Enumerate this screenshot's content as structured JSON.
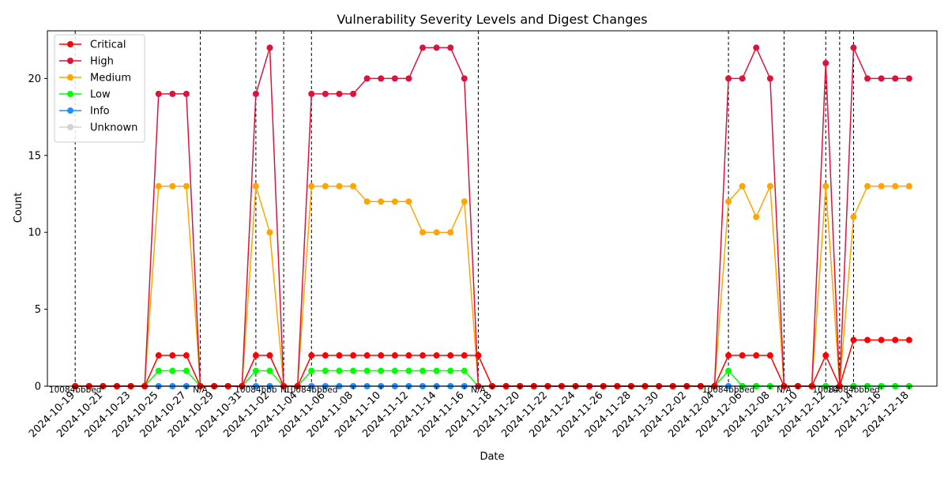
{
  "chart_data": {
    "type": "line",
    "title": "Vulnerability Severity Levels and Digest Changes",
    "xlabel": "Date",
    "ylabel": "Count",
    "ylim": [
      0,
      23.1
    ],
    "yticks": [
      0,
      5,
      10,
      15,
      20
    ],
    "xlim": [
      "2024-10-17",
      "2024-12-20"
    ],
    "xticks": [
      "2024-10-19",
      "2024-10-21",
      "2024-10-23",
      "2024-10-25",
      "2024-10-27",
      "2024-10-29",
      "2024-10-31",
      "2024-11-02",
      "2024-11-04",
      "2024-11-06",
      "2024-11-08",
      "2024-11-10",
      "2024-11-12",
      "2024-11-14",
      "2024-11-16",
      "2024-11-18",
      "2024-11-20",
      "2024-11-22",
      "2024-11-24",
      "2024-11-26",
      "2024-11-28",
      "2024-11-30",
      "2024-12-02",
      "2024-12-04",
      "2024-12-06",
      "2024-12-08",
      "2024-12-10",
      "2024-12-12",
      "2024-12-14",
      "2024-12-16",
      "2024-12-18"
    ],
    "legend_position": "upper-left",
    "start_date": "2024-10-19",
    "series": [
      {
        "name": "Critical",
        "color": "#ff0000",
        "line_color": "#ff0000",
        "values": [
          0,
          0,
          0,
          0,
          0,
          0,
          2,
          2,
          2,
          0,
          0,
          0,
          0,
          2,
          2,
          0,
          0,
          2,
          2,
          2,
          2,
          2,
          2,
          2,
          2,
          2,
          2,
          2,
          2,
          2,
          0,
          0,
          0,
          0,
          0,
          0,
          0,
          0,
          0,
          0,
          0,
          0,
          0,
          0,
          0,
          0,
          0,
          2,
          2,
          2,
          2,
          0,
          0,
          0,
          2,
          0,
          3,
          3,
          3,
          3,
          3
        ]
      },
      {
        "name": "High",
        "color": "#dc143c",
        "line_color": "#dc143c",
        "values": [
          0,
          0,
          0,
          0,
          0,
          0,
          19,
          19,
          19,
          0,
          0,
          0,
          0,
          19,
          22,
          0,
          0,
          19,
          19,
          19,
          19,
          20,
          20,
          20,
          20,
          22,
          22,
          22,
          20,
          0,
          0,
          0,
          0,
          0,
          0,
          0,
          0,
          0,
          0,
          0,
          0,
          0,
          0,
          0,
          0,
          0,
          0,
          20,
          20,
          22,
          20,
          0,
          0,
          0,
          21,
          0,
          22,
          20,
          20,
          20,
          20
        ]
      },
      {
        "name": "Medium",
        "color": "#ffa500",
        "line_color": "#ffa500",
        "values": [
          0,
          0,
          0,
          0,
          0,
          0,
          13,
          13,
          13,
          0,
          0,
          0,
          0,
          13,
          10,
          0,
          0,
          13,
          13,
          13,
          13,
          12,
          12,
          12,
          12,
          10,
          10,
          10,
          12,
          0,
          0,
          0,
          0,
          0,
          0,
          0,
          0,
          0,
          0,
          0,
          0,
          0,
          0,
          0,
          0,
          0,
          0,
          12,
          13,
          11,
          13,
          0,
          0,
          0,
          13,
          0,
          11,
          13,
          13,
          13,
          13
        ]
      },
      {
        "name": "Low",
        "color": "#00ff00",
        "line_color": "#00ff00",
        "values": [
          0,
          0,
          0,
          0,
          0,
          0,
          1,
          1,
          1,
          0,
          0,
          0,
          0,
          1,
          1,
          0,
          0,
          1,
          1,
          1,
          1,
          1,
          1,
          1,
          1,
          1,
          1,
          1,
          1,
          0,
          0,
          0,
          0,
          0,
          0,
          0,
          0,
          0,
          0,
          0,
          0,
          0,
          0,
          0,
          0,
          0,
          0,
          1,
          0,
          0,
          0,
          0,
          0,
          0,
          0,
          0,
          0,
          0,
          0,
          0,
          0
        ]
      },
      {
        "name": "Info",
        "color": "#1e90ff",
        "line_color": "#1e90ff",
        "values": [
          0,
          0,
          0,
          0,
          0,
          0,
          0,
          0,
          0,
          0,
          0,
          0,
          0,
          0,
          0,
          0,
          0,
          0,
          0,
          0,
          0,
          0,
          0,
          0,
          0,
          0,
          0,
          0,
          0,
          0,
          0,
          0,
          0,
          0,
          0,
          0,
          0,
          0,
          0,
          0,
          0,
          0,
          0,
          0,
          0,
          0,
          0,
          0,
          0,
          0,
          0,
          0,
          0,
          0,
          0,
          0,
          0,
          0,
          0,
          0,
          0
        ]
      },
      {
        "name": "Unknown",
        "color": "#d3d3d3",
        "line_color": "#d3d3d3",
        "values": [
          0,
          0,
          0,
          0,
          0,
          0,
          0,
          0,
          0,
          0,
          0,
          0,
          0,
          0,
          0,
          0,
          0,
          0,
          0,
          0,
          0,
          0,
          0,
          0,
          0,
          0,
          0,
          0,
          0,
          0,
          0,
          0,
          0,
          0,
          0,
          0,
          0,
          0,
          0,
          0,
          0,
          0,
          0,
          0,
          0,
          0,
          0,
          0,
          0,
          0,
          0,
          0,
          0,
          0,
          0,
          0,
          0,
          0,
          0,
          0,
          0
        ]
      }
    ],
    "digest_changes": [
      {
        "date": "2024-10-19",
        "label": "10084bbbed"
      },
      {
        "date": "2024-10-28",
        "label": "N/A"
      },
      {
        "date": "2024-11-01",
        "label": "10084bbb"
      },
      {
        "date": "2024-11-03",
        "label": "N"
      },
      {
        "date": "2024-11-05",
        "label": "10084bbbed"
      },
      {
        "date": "2024-11-17",
        "label": "N/A"
      },
      {
        "date": "2024-12-05",
        "label": "10084bbbed"
      },
      {
        "date": "2024-12-09",
        "label": "N/A"
      },
      {
        "date": "2024-12-12",
        "label": "10084"
      },
      {
        "date": "2024-12-13",
        "label": ""
      },
      {
        "date": "2024-12-14",
        "label": "10084bbbed"
      }
    ]
  }
}
